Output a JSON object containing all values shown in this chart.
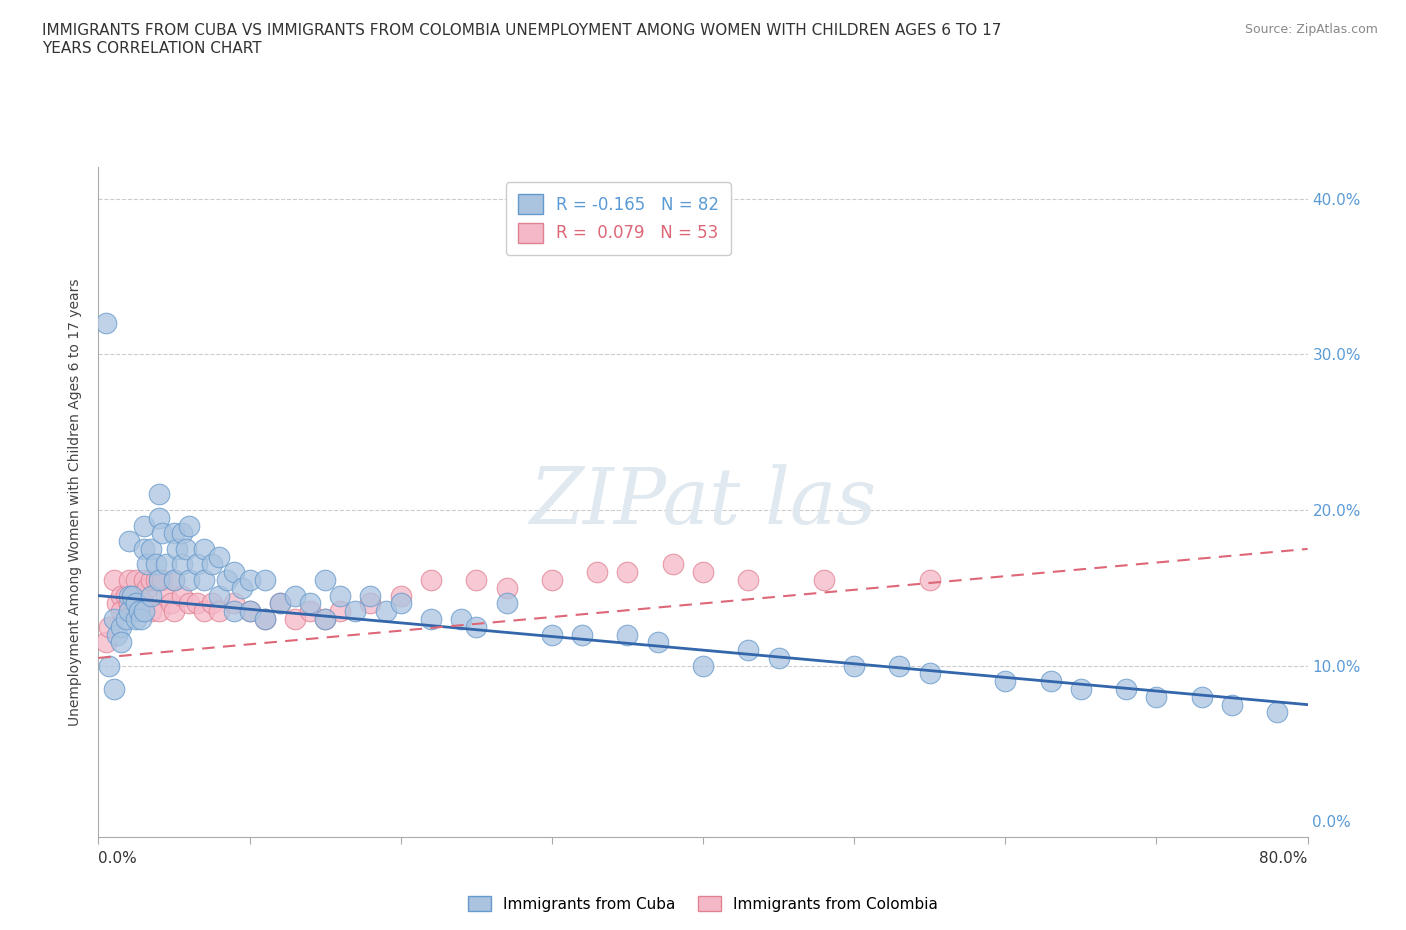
{
  "title": "IMMIGRANTS FROM CUBA VS IMMIGRANTS FROM COLOMBIA UNEMPLOYMENT AMONG WOMEN WITH CHILDREN AGES 6 TO 17\nYEARS CORRELATION CHART",
  "source": "Source: ZipAtlas.com",
  "ylabel": "Unemployment Among Women with Children Ages 6 to 17 years",
  "legend_cuba": "Immigrants from Cuba",
  "legend_colombia": "Immigrants from Colombia",
  "r_cuba": -0.165,
  "n_cuba": 82,
  "r_colombia": 0.079,
  "n_colombia": 53,
  "cuba_color": "#aac4e0",
  "cuba_edge": "#6699cc",
  "colombia_color": "#f5b8c8",
  "colombia_edge": "#e08090",
  "cuba_line_color": "#3366aa",
  "colombia_line_color": "#dd6677",
  "xlim": [
    0.0,
    0.8
  ],
  "ylim": [
    -0.01,
    0.42
  ],
  "ytick_vals": [
    0.0,
    0.1,
    0.2,
    0.3,
    0.4
  ],
  "ytick_labels_right": [
    "0.0%",
    "10.0%",
    "20.0%",
    "30.0%",
    "40.0%"
  ],
  "xtick_positions": [
    0.0,
    0.1,
    0.2,
    0.3,
    0.4,
    0.5,
    0.6,
    0.7,
    0.8
  ],
  "cuba_x": [
    0.005,
    0.007,
    0.01,
    0.01,
    0.012,
    0.015,
    0.015,
    0.018,
    0.02,
    0.02,
    0.02,
    0.022,
    0.025,
    0.025,
    0.027,
    0.028,
    0.03,
    0.03,
    0.03,
    0.032,
    0.035,
    0.035,
    0.038,
    0.04,
    0.04,
    0.04,
    0.042,
    0.045,
    0.05,
    0.05,
    0.052,
    0.055,
    0.055,
    0.058,
    0.06,
    0.06,
    0.065,
    0.07,
    0.07,
    0.075,
    0.08,
    0.08,
    0.085,
    0.09,
    0.09,
    0.095,
    0.1,
    0.1,
    0.11,
    0.11,
    0.12,
    0.13,
    0.14,
    0.15,
    0.15,
    0.16,
    0.17,
    0.18,
    0.19,
    0.2,
    0.22,
    0.24,
    0.25,
    0.27,
    0.3,
    0.32,
    0.35,
    0.37,
    0.4,
    0.43,
    0.45,
    0.5,
    0.53,
    0.55,
    0.6,
    0.63,
    0.65,
    0.68,
    0.7,
    0.73,
    0.75,
    0.78
  ],
  "cuba_y": [
    0.32,
    0.1,
    0.13,
    0.085,
    0.12,
    0.125,
    0.115,
    0.13,
    0.18,
    0.145,
    0.135,
    0.145,
    0.14,
    0.13,
    0.135,
    0.13,
    0.19,
    0.175,
    0.135,
    0.165,
    0.175,
    0.145,
    0.165,
    0.21,
    0.195,
    0.155,
    0.185,
    0.165,
    0.185,
    0.155,
    0.175,
    0.185,
    0.165,
    0.175,
    0.19,
    0.155,
    0.165,
    0.175,
    0.155,
    0.165,
    0.17,
    0.145,
    0.155,
    0.16,
    0.135,
    0.15,
    0.155,
    0.135,
    0.155,
    0.13,
    0.14,
    0.145,
    0.14,
    0.155,
    0.13,
    0.145,
    0.135,
    0.145,
    0.135,
    0.14,
    0.13,
    0.13,
    0.125,
    0.14,
    0.12,
    0.12,
    0.12,
    0.115,
    0.1,
    0.11,
    0.105,
    0.1,
    0.1,
    0.095,
    0.09,
    0.09,
    0.085,
    0.085,
    0.08,
    0.08,
    0.075,
    0.07
  ],
  "colombia_x": [
    0.005,
    0.007,
    0.01,
    0.012,
    0.015,
    0.015,
    0.018,
    0.02,
    0.02,
    0.022,
    0.025,
    0.025,
    0.027,
    0.03,
    0.03,
    0.032,
    0.035,
    0.035,
    0.038,
    0.04,
    0.04,
    0.042,
    0.045,
    0.048,
    0.05,
    0.05,
    0.055,
    0.06,
    0.065,
    0.07,
    0.075,
    0.08,
    0.09,
    0.1,
    0.11,
    0.12,
    0.13,
    0.14,
    0.15,
    0.16,
    0.18,
    0.2,
    0.22,
    0.25,
    0.27,
    0.3,
    0.33,
    0.35,
    0.38,
    0.4,
    0.43,
    0.48,
    0.55
  ],
  "colombia_y": [
    0.115,
    0.125,
    0.155,
    0.14,
    0.145,
    0.135,
    0.145,
    0.155,
    0.14,
    0.145,
    0.155,
    0.135,
    0.145,
    0.155,
    0.14,
    0.15,
    0.155,
    0.135,
    0.155,
    0.155,
    0.135,
    0.155,
    0.145,
    0.14,
    0.155,
    0.135,
    0.145,
    0.14,
    0.14,
    0.135,
    0.14,
    0.135,
    0.14,
    0.135,
    0.13,
    0.14,
    0.13,
    0.135,
    0.13,
    0.135,
    0.14,
    0.145,
    0.155,
    0.155,
    0.15,
    0.155,
    0.16,
    0.16,
    0.165,
    0.16,
    0.155,
    0.155,
    0.155
  ],
  "cuba_trend_x": [
    0.0,
    0.8
  ],
  "cuba_trend_y": [
    0.145,
    0.075
  ],
  "colombia_trend_x": [
    0.0,
    0.8
  ],
  "colombia_trend_y": [
    0.105,
    0.175
  ]
}
